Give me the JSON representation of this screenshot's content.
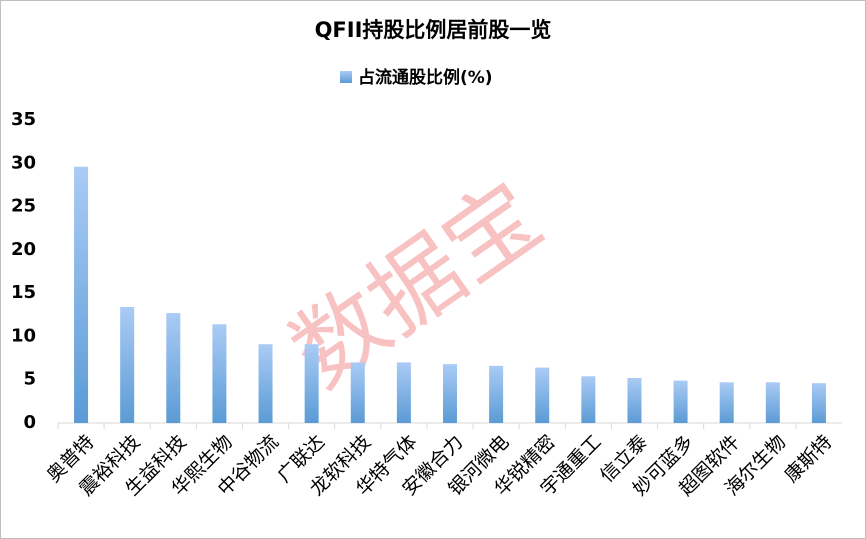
{
  "chart_data": {
    "type": "bar",
    "title": "QFII持股比例居前股一览",
    "watermark": "数据宝",
    "categories": [
      "奥普特",
      "震裕科技",
      "生益科技",
      "华熙生物",
      "中谷物流",
      "广联达",
      "龙软科技",
      "华特气体",
      "安徽合力",
      "银河微电",
      "华锐精密",
      "宇通重工",
      "信立泰",
      "妙可蓝多",
      "超图软件",
      "海尔生物",
      "康斯特"
    ],
    "series": [
      {
        "name": "占流通股比例(%)",
        "color": "#5b9bd5",
        "values": [
          29.6,
          13.4,
          12.7,
          11.4,
          9.1,
          9.1,
          7.0,
          7.0,
          6.8,
          6.6,
          6.4,
          5.4,
          5.2,
          4.9,
          4.7,
          4.7,
          4.6
        ]
      }
    ],
    "ylim": [
      0,
      35
    ],
    "yticks": [
      0,
      5,
      10,
      15,
      20,
      25,
      30,
      35
    ],
    "grid": false
  }
}
